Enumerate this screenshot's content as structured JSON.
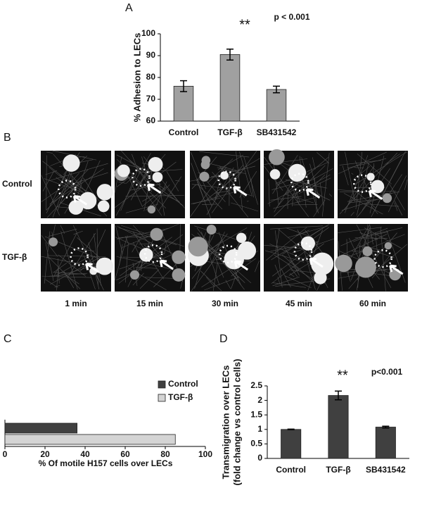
{
  "panel_labels": [
    "A",
    "B",
    "C",
    "D"
  ],
  "microscopy": {
    "row_labels": [
      "Control",
      "TGF-β"
    ],
    "time_labels": [
      "1 min",
      "15 min",
      "30 min",
      "45 min",
      "60 min"
    ]
  },
  "chart_data": [
    {
      "type": "bar",
      "ylabel": "% Adhesion to LECs",
      "categories": [
        "Control",
        "TGF-β",
        "SB431542"
      ],
      "values": [
        76,
        90.5,
        74.5
      ],
      "errors": [
        2.5,
        2.5,
        1.5
      ],
      "color": "#a0a0a0",
      "ylim": [
        60,
        100
      ],
      "yticks": [
        60,
        70,
        80,
        90,
        100
      ],
      "annotations": [
        "**",
        "p < 0.001"
      ]
    },
    {
      "type": "barh",
      "xlabel": "% Of motile H157 cells over LECs",
      "categories": [
        null
      ],
      "series": [
        {
          "name": "Control",
          "color": "#404040",
          "values": [
            36
          ]
        },
        {
          "name": "TGF-β",
          "color": "#d4d4d4",
          "values": [
            85
          ]
        }
      ],
      "xlim": [
        0,
        100
      ],
      "xticks": [
        0,
        20,
        40,
        60,
        80,
        100
      ],
      "legend": "upper right"
    },
    {
      "type": "bar",
      "ylabel": [
        "Transmigration over LECs",
        "(fold change vs control cells)"
      ],
      "categories": [
        "Control",
        "TGF-β",
        "SB431542"
      ],
      "values": [
        1,
        2.17,
        1.08
      ],
      "errors": [
        0.01,
        0.15,
        0.03
      ],
      "color": "#404040",
      "ylim": [
        0,
        2.5
      ],
      "yticks": [
        0,
        0.5,
        1,
        1.5,
        2,
        2.5
      ],
      "annotations": [
        "**",
        "p<0.001"
      ]
    }
  ]
}
